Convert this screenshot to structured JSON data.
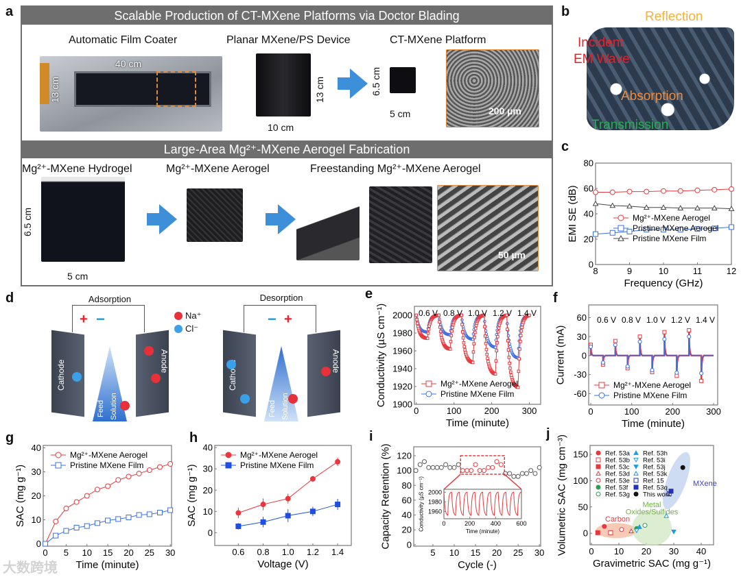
{
  "panel_labels": [
    "a",
    "b",
    "c",
    "d",
    "e",
    "f",
    "g",
    "h",
    "i",
    "j"
  ],
  "a": {
    "title1": "Scalable Production of CT-MXene Platforms via Doctor Blading",
    "title2": "Large-Area Mg²⁺-MXene Aerogel Fabrication",
    "coater": "Automatic Film Coater",
    "coater_w": "40 cm",
    "coater_h": "13 cm",
    "planar": "Planar MXene/PS Device",
    "planar_h": "13 cm",
    "planar_w": "10 cm",
    "ct": "CT-MXene Platform",
    "ct_h": "6.5 cm",
    "ct_w": "5 cm",
    "ct_scale": "200 µm",
    "hydrogel": "Mg²⁺-MXene Hydrogel",
    "hydro_h": "6.5 cm",
    "hydro_w": "5 cm",
    "aerogel": "Mg²⁺-MXene Aerogel",
    "free": "Freestanding Mg²⁺-MXene Aerogel",
    "free_scale": "50 µm"
  },
  "b": {
    "reflection": "Reflection",
    "incident1": "Incident",
    "incident2": "EM Wave",
    "absorption": "Absorption",
    "transmission": "Transmission"
  },
  "d": {
    "adsorption": "Adsorption",
    "desorption": "Desorption",
    "na": "Na⁺",
    "cl": "Cl⁻",
    "cathode": "Cathode",
    "anode": "Anode",
    "feed1": "Feed",
    "feed2": "Solution",
    "plus": "+",
    "minus": "−"
  },
  "watermark": "大数跨境",
  "colors": {
    "red": "#e8383d",
    "blue": "#3b6fe0",
    "black": "#444444",
    "green": "#2e9d55",
    "arrow": "#3d8fd9"
  },
  "chart_data": [
    {
      "id": "c",
      "type": "line",
      "xlabel": "Frequency (GHz)",
      "ylabel": "EMI SE (dB)",
      "xlim": [
        8,
        12
      ],
      "ylim": [
        0,
        80
      ],
      "xticks": [
        8,
        9,
        10,
        11,
        12
      ],
      "yticks": [
        0,
        20,
        40,
        60,
        80
      ],
      "x": [
        8,
        8.5,
        9,
        9.5,
        10,
        10.5,
        11,
        11.5,
        12
      ],
      "series": [
        {
          "name": "Mg²⁺-MXene Aerogel",
          "color": "#e8383d",
          "marker": "circle-open",
          "values": [
            57,
            57,
            57.5,
            57.5,
            58,
            58,
            58.5,
            59,
            59.5
          ]
        },
        {
          "name": "Pristine MXene Aerogel",
          "color": "#3b6fe0",
          "marker": "square-open",
          "values": [
            24,
            25,
            26,
            27.5,
            27.5,
            27.5,
            28,
            28.5,
            29.5
          ]
        },
        {
          "name": "Pristine MXene Film",
          "color": "#444444",
          "marker": "triangle-open",
          "values": [
            48,
            46.5,
            46,
            45,
            45,
            44.5,
            44.5,
            44.5,
            44
          ]
        }
      ]
    },
    {
      "id": "e",
      "type": "line",
      "xlabel": "Time (minute)",
      "ylabel": "Conductivity (µS cm⁻¹)",
      "xlim": [
        -5,
        330
      ],
      "ylim": [
        1900,
        2010
      ],
      "xticks": [
        0,
        100,
        200,
        300
      ],
      "yticks": [
        1900,
        1920,
        1940,
        1960,
        1980,
        2000
      ],
      "annotations": [
        "0.6 V",
        "0.8 V",
        "1.0 V",
        "1.2 V",
        "1.4 V"
      ],
      "cycle_minutes": 60,
      "start": 2000,
      "series": [
        {
          "name": "Mg²⁺-MXene Aerogel",
          "color": "#e8383d",
          "marker": "square-open",
          "cycle_minima": [
            1974,
            1962,
            1947,
            1934,
            1919
          ]
        },
        {
          "name": "Pristine MXene Film",
          "color": "#3b6fe0",
          "marker": "circle-open",
          "cycle_minima": [
            1981,
            1978,
            1973,
            1964,
            1952
          ]
        }
      ]
    },
    {
      "id": "f",
      "type": "line",
      "xlabel": "Time (minute)",
      "ylabel": "Current (mA)",
      "xlim": [
        -5,
        310
      ],
      "ylim": [
        -78,
        80
      ],
      "xticks": [
        0,
        100,
        200,
        300
      ],
      "yticks": [
        -60,
        -30,
        0,
        30,
        60
      ],
      "annotations": [
        "0.6 V",
        "0.8 V",
        "1.0 V",
        "1.2 V",
        "1.4 V"
      ],
      "spike_times": [
        0,
        30,
        60,
        90,
        120,
        150,
        180,
        210,
        240,
        270
      ],
      "series": [
        {
          "name": "Mg²⁺-MXene Aerogel",
          "color": "#e8383d",
          "marker": "square-open",
          "peaks": [
            17,
            -14,
            23,
            -20,
            30,
            -26,
            37,
            -32,
            40,
            -40
          ]
        },
        {
          "name": "Pristine MXene Film",
          "color": "#3b6fe0",
          "marker": "circle-open",
          "peaks": [
            14,
            -11,
            17,
            -17,
            22,
            -23,
            26,
            -27,
            30,
            -28
          ]
        }
      ]
    },
    {
      "id": "g",
      "type": "line",
      "xlabel": "Time (minute)",
      "ylabel": "SAC (mg g⁻¹)",
      "xlim": [
        -0.5,
        30.3
      ],
      "ylim": [
        -1,
        41
      ],
      "xticks": [
        0,
        5,
        10,
        15,
        20,
        25,
        30
      ],
      "yticks": [
        0,
        10,
        20,
        30,
        40
      ],
      "x": [
        0,
        2.5,
        5,
        7.5,
        10,
        12.5,
        15,
        17.5,
        20,
        22.5,
        25,
        27.5,
        30
      ],
      "series": [
        {
          "name": "Mg²⁺-MXene Aerogel",
          "color": "#e8383d",
          "marker": "circle-open",
          "values": [
            0,
            9.3,
            14.7,
            17.4,
            20,
            22.6,
            24,
            26.6,
            28,
            29.3,
            30.7,
            32,
            33.3
          ]
        },
        {
          "name": "Pristine MXene Film",
          "color": "#3b6fe0",
          "marker": "square-open",
          "values": [
            0,
            3.4,
            5.4,
            6.7,
            7.4,
            8.6,
            9.7,
            10.3,
            11,
            12,
            12.3,
            13,
            14
          ]
        }
      ]
    },
    {
      "id": "h",
      "type": "line",
      "xlabel": "Voltage (V)",
      "ylabel": "SAC (mg g⁻¹)",
      "xlim": [
        0.41,
        1.51
      ],
      "ylim": [
        -6,
        41
      ],
      "xticks": [
        0.6,
        0.8,
        1.0,
        1.2,
        1.4
      ],
      "xtick_labels": [
        "0.6",
        "0.8",
        "1.0",
        "1.2",
        "1.4"
      ],
      "yticks": [
        0,
        10,
        20,
        30,
        40
      ],
      "x": [
        0.6,
        0.8,
        1.0,
        1.2,
        1.4
      ],
      "series": [
        {
          "name": "Mg²⁺-MXene Aerogel",
          "color": "#e8383d",
          "marker": "circle-filled",
          "values": [
            9.3,
            13.3,
            16,
            25.3,
            33.3
          ],
          "errors": [
            2.5,
            2.8,
            2.3,
            1.3,
            2
          ]
        },
        {
          "name": "Pristine MXene Film",
          "color": "#1f4fe0",
          "marker": "square-filled",
          "values": [
            3,
            5,
            8,
            10,
            13.3
          ],
          "errors": [
            1.5,
            2.5,
            3,
            2.2,
            2.6
          ]
        }
      ]
    },
    {
      "id": "i",
      "type": "scatter",
      "xlabel": "Cycle (-)",
      "ylabel": "Capacity Retention (%)",
      "xlim": [
        0.5,
        30.3
      ],
      "ylim": [
        -2,
        132
      ],
      "xticks": [
        5,
        10,
        15,
        20,
        25,
        30
      ],
      "yticks": [
        0,
        20,
        40,
        60,
        80,
        100,
        120
      ],
      "x": [
        1,
        2,
        3,
        4,
        5,
        6,
        7,
        8,
        9,
        10,
        11,
        12,
        13,
        14,
        15,
        16,
        17,
        18,
        19,
        20,
        21,
        22,
        23,
        24,
        25,
        26,
        27,
        28,
        29,
        30
      ],
      "values": [
        100,
        108,
        112,
        104,
        104,
        104,
        104,
        108,
        104,
        104,
        108,
        100,
        100,
        100,
        108,
        100,
        100,
        104,
        104,
        112,
        108,
        96,
        96,
        92,
        92,
        96,
        96,
        100,
        96,
        104
      ],
      "highlight_cycles": [
        12,
        21
      ],
      "inset": {
        "xlabel": "Time (minute)",
        "ylabel": "Conductivity (µS cm⁻¹)",
        "xlim": [
          0,
          600
        ],
        "ylim": [
          1945,
          2006
        ],
        "xticks": [
          0,
          200,
          400,
          600
        ],
        "yticks": [
          1960,
          1980,
          2000
        ],
        "cycles": 10,
        "max": 2000,
        "min": 1952
      }
    },
    {
      "id": "j",
      "type": "scatter",
      "xlabel": "Gravimetric SAC (mg g⁻¹)",
      "ylabel": "Volumetric SAC (mg cm⁻³)",
      "xlim": [
        -0.5,
        44.5
      ],
      "ylim": [
        -22,
        167
      ],
      "xticks": [
        0,
        10,
        20,
        30,
        40
      ],
      "yticks": [
        0,
        50,
        100,
        150
      ],
      "groups": [
        {
          "name": "Carbon",
          "color": "#e8383d"
        },
        {
          "name": "Metal Oxides/Sulfides",
          "color": "#6fb33f"
        },
        {
          "name": "MXene",
          "color": "#3b3be0"
        }
      ],
      "points": [
        {
          "name": "Ref. 53a",
          "x": 4.7,
          "y": 13,
          "color": "#e8383d",
          "marker": "circle-filled"
        },
        {
          "name": "Ref. 53b",
          "x": 7,
          "y": 1,
          "color": "#e8383d",
          "marker": "square-open"
        },
        {
          "name": "Ref. 53c",
          "x": 2.3,
          "y": 1,
          "color": "#e8383d",
          "marker": "square-filled"
        },
        {
          "name": "Ref. 53d",
          "x": 14.5,
          "y": 4,
          "color": "#e8383d",
          "marker": "triangle-open"
        },
        {
          "name": "Ref. 53e",
          "x": 11,
          "y": 7,
          "color": "#e8383d",
          "marker": "circle-open"
        },
        {
          "name": "Ref. 53f",
          "x": 16.5,
          "y": 9,
          "color": "#2e9d55",
          "marker": "circle-filled"
        },
        {
          "name": "Ref. 53g",
          "x": 19.5,
          "y": 15,
          "color": "#2e9d55",
          "marker": "circle-open"
        },
        {
          "name": "Ref. 53h",
          "x": 17.5,
          "y": 12,
          "color": "#1e9ce0",
          "marker": "triangle-filled"
        },
        {
          "name": "Ref. 53i",
          "x": 16.5,
          "y": 5,
          "color": "#1e9ce0",
          "marker": "tridown-open"
        },
        {
          "name": "Ref. 53j",
          "x": 30,
          "y": 3,
          "color": "#1e9ce0",
          "marker": "tridown-filled"
        },
        {
          "name": "Ref. 53k",
          "x": 27.3,
          "y": 33,
          "color": "#1e9ce0",
          "marker": "triangle-open"
        },
        {
          "name": "Ref. 15",
          "x": 28.3,
          "y": 75,
          "color": "#2233bb",
          "marker": "square-open"
        },
        {
          "name": "Ref. 53q",
          "x": 29,
          "y": 80,
          "color": "#2233bb",
          "marker": "square-filled"
        },
        {
          "name": "This work",
          "x": 33.3,
          "y": 125,
          "color": "#111111",
          "marker": "circle-filled"
        }
      ]
    }
  ]
}
